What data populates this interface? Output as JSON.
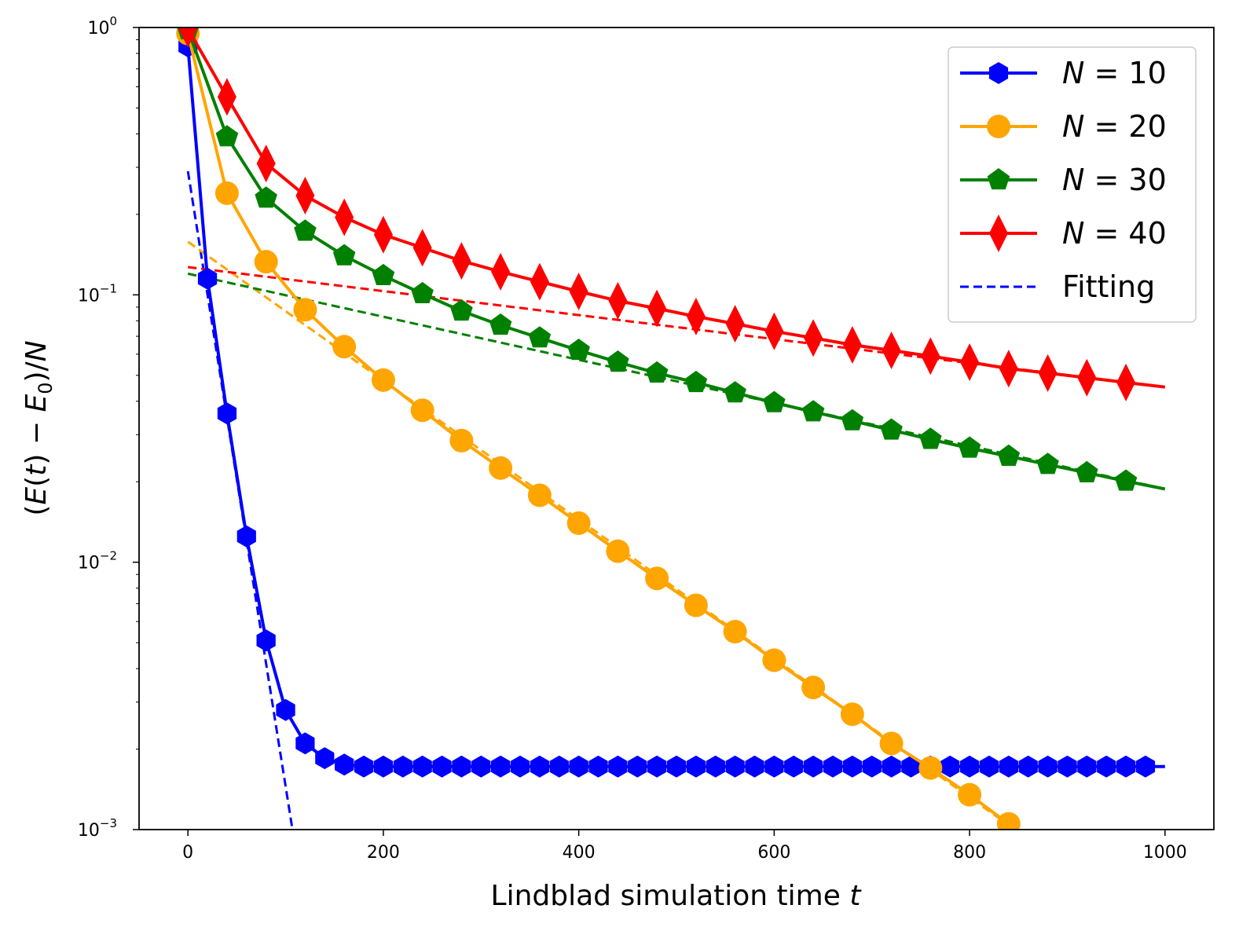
{
  "chart_data": {
    "type": "line",
    "title": "",
    "xlabel": "Lindblad simulation time t",
    "ylabel": "(E(t) − E0)/N",
    "xscale": "linear",
    "yscale": "log",
    "xlim": [
      -50,
      1050
    ],
    "ylim": [
      0.001,
      1
    ],
    "xticks": [
      0,
      200,
      400,
      600,
      800,
      1000
    ],
    "xtick_labels": [
      "0",
      "200",
      "400",
      "600",
      "800",
      "1000"
    ],
    "yticks": [
      0.001,
      0.01,
      0.1,
      1
    ],
    "ytick_labels": [
      {
        "base": "10",
        "exp": "−3"
      },
      {
        "base": "10",
        "exp": "−2"
      },
      {
        "base": "10",
        "exp": "−1"
      },
      {
        "base": "10",
        "exp": "0"
      }
    ],
    "legend_position": "top-right",
    "series": [
      {
        "name": "N = 10",
        "label_var": "N",
        "label_eq": " = 10",
        "color": "#0000ff",
        "marker": "hexagon",
        "x": [
          0,
          20,
          40,
          60,
          80,
          100,
          120,
          140,
          160,
          180,
          200,
          220,
          240,
          260,
          280,
          300,
          320,
          340,
          360,
          380,
          400,
          420,
          440,
          460,
          480,
          500,
          520,
          540,
          560,
          580,
          600,
          620,
          640,
          660,
          680,
          700,
          720,
          740,
          760,
          780,
          800,
          820,
          840,
          860,
          880,
          900,
          920,
          940,
          960,
          980
        ],
        "y": [
          0.85,
          0.115,
          0.036,
          0.0125,
          0.0051,
          0.0028,
          0.0021,
          0.00185,
          0.00175,
          0.00172,
          0.00172,
          0.00172,
          0.00172,
          0.00172,
          0.00172,
          0.00172,
          0.00172,
          0.00172,
          0.00172,
          0.00172,
          0.00172,
          0.00172,
          0.00172,
          0.00172,
          0.00172,
          0.00172,
          0.00172,
          0.00172,
          0.00172,
          0.00172,
          0.00172,
          0.00172,
          0.00172,
          0.00172,
          0.00172,
          0.00172,
          0.00172,
          0.00172,
          0.00172,
          0.00172,
          0.00172,
          0.00172,
          0.00172,
          0.00172,
          0.00172,
          0.00172,
          0.00172,
          0.00172,
          0.00172,
          0.00172
        ],
        "line_end": [
          1000,
          0.00172
        ],
        "fit": [
          [
            0,
            0.29
          ],
          [
            107,
            0.001
          ]
        ]
      },
      {
        "name": "N = 20",
        "label_var": "N",
        "label_eq": " = 20",
        "color": "#ffa500",
        "marker": "circle",
        "x": [
          0,
          40,
          80,
          120,
          160,
          200,
          240,
          280,
          320,
          360,
          400,
          440,
          480,
          520,
          560,
          600,
          640,
          680,
          720,
          760,
          800,
          840
        ],
        "y": [
          0.95,
          0.24,
          0.133,
          0.088,
          0.064,
          0.048,
          0.037,
          0.0285,
          0.0225,
          0.0178,
          0.014,
          0.011,
          0.0087,
          0.0069,
          0.0055,
          0.0043,
          0.0034,
          0.0027,
          0.0021,
          0.0017,
          0.00135,
          0.00105
        ],
        "line_end": [
          855,
          0.00095
        ],
        "fit": [
          [
            0,
            0.158
          ],
          [
            855,
            0.00095
          ]
        ]
      },
      {
        "name": "N = 30",
        "label_var": "N",
        "label_eq": " = 30",
        "color": "#008000",
        "marker": "pentagon",
        "x": [
          0,
          40,
          80,
          120,
          160,
          200,
          240,
          280,
          320,
          360,
          400,
          440,
          480,
          520,
          560,
          600,
          640,
          680,
          720,
          760,
          800,
          840,
          880,
          920,
          960
        ],
        "y": [
          0.98,
          0.39,
          0.23,
          0.173,
          0.14,
          0.118,
          0.101,
          0.087,
          0.077,
          0.069,
          0.062,
          0.056,
          0.051,
          0.047,
          0.043,
          0.0395,
          0.0365,
          0.0338,
          0.0312,
          0.0288,
          0.0267,
          0.0249,
          0.0232,
          0.0216,
          0.0201
        ],
        "line_end": [
          1000,
          0.0188
        ],
        "fit": [
          [
            0,
            0.12
          ],
          [
            1000,
            0.0188
          ]
        ]
      },
      {
        "name": "N = 40",
        "label_var": "N",
        "label_eq": " = 40",
        "color": "#ff0000",
        "marker": "diamond",
        "x": [
          0,
          40,
          80,
          120,
          160,
          200,
          240,
          280,
          320,
          360,
          400,
          440,
          480,
          520,
          560,
          600,
          640,
          680,
          720,
          760,
          800,
          840,
          880,
          920,
          960
        ],
        "y": [
          0.99,
          0.55,
          0.31,
          0.235,
          0.195,
          0.168,
          0.15,
          0.134,
          0.122,
          0.112,
          0.103,
          0.095,
          0.089,
          0.083,
          0.078,
          0.073,
          0.069,
          0.065,
          0.062,
          0.059,
          0.056,
          0.053,
          0.051,
          0.049,
          0.047
        ],
        "line_end": [
          1000,
          0.0452
        ],
        "fit": [
          [
            0,
            0.127
          ],
          [
            1000,
            0.0452
          ]
        ]
      }
    ],
    "fitting_legend": {
      "name": "Fitting",
      "color": "#0000ff",
      "style": "dashed"
    }
  }
}
